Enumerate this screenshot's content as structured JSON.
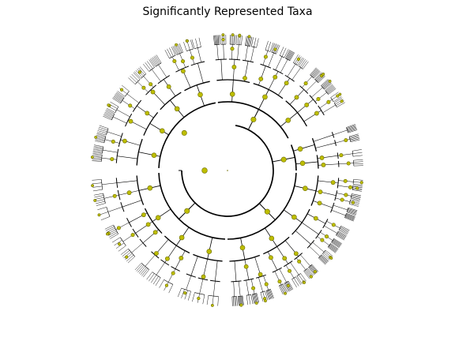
{
  "title": "Significantly Represented Taxa",
  "colors": {
    "background": "#ffffff",
    "edge": "#000000",
    "node_fill": "#bdbd00",
    "node_stroke": "#6b6b00"
  },
  "chart_data": {
    "type": "radial cladogram",
    "title": "Significantly Represented Taxa"
  }
}
